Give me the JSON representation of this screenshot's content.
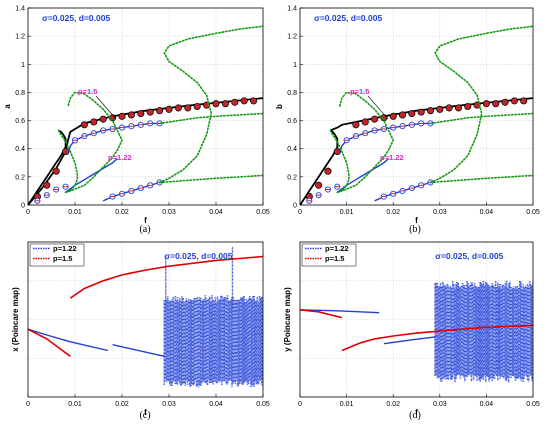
{
  "colors": {
    "black": "#000000",
    "blue": "#1f3fd6",
    "red": "#e00000",
    "green": "#119a11",
    "magenta": "#e01fc9",
    "marker_fill": "#c0252a",
    "grid": "#d0d0d0"
  },
  "chart_data": [
    {
      "type": "line",
      "panel": "a",
      "caption": "(a)",
      "xlabel": "f",
      "ylabel": "a",
      "param_text": "σ=0.025, d=0.005",
      "annotations": [
        "p=1.5",
        "p=1.22"
      ],
      "xlim": [
        0,
        0.05
      ],
      "ylim": [
        0,
        1.4
      ],
      "xticks": [
        "0",
        "0.01",
        "0.02",
        "0.03",
        "0.04",
        "0.05"
      ],
      "yticks": [
        "0",
        "0.2",
        "0.4",
        "0.6",
        "0.8",
        "1",
        "1.2",
        "1.4"
      ],
      "grid": true,
      "series": [
        {
          "style": "black-solid",
          "x": [
            0,
            0.003,
            0.006,
            0.008,
            0.0085,
            0.009,
            0.012,
            0.018,
            0.025,
            0.035,
            0.05
          ],
          "y": [
            0,
            0.12,
            0.26,
            0.38,
            0.46,
            0.52,
            0.58,
            0.63,
            0.67,
            0.71,
            0.76
          ]
        },
        {
          "style": "black-solid",
          "x": [
            0.0,
            0.001,
            0.002,
            0.003,
            0.004,
            0.005,
            0.006,
            0.007,
            0.0075,
            0.008,
            0.008,
            0.0075,
            0.007,
            0.0065
          ],
          "y": [
            0.0,
            0.05,
            0.1,
            0.15,
            0.2,
            0.25,
            0.3,
            0.35,
            0.38,
            0.41,
            0.47,
            0.5,
            0.52,
            0.53
          ]
        },
        {
          "style": "red-circles",
          "x": [
            0.002,
            0.004,
            0.006,
            0.008,
            0.012,
            0.014,
            0.016,
            0.018,
            0.02,
            0.022,
            0.024,
            0.026,
            0.028,
            0.03,
            0.032,
            0.034,
            0.036,
            0.038,
            0.04,
            0.042,
            0.044,
            0.046,
            0.048
          ],
          "y": [
            0.06,
            0.14,
            0.24,
            0.38,
            0.57,
            0.59,
            0.61,
            0.62,
            0.63,
            0.64,
            0.65,
            0.66,
            0.67,
            0.68,
            0.69,
            0.69,
            0.7,
            0.71,
            0.72,
            0.72,
            0.73,
            0.74,
            0.74
          ]
        },
        {
          "style": "blue-solid",
          "x": [
            0.0085,
            0.009,
            0.01,
            0.012,
            0.014,
            0.016,
            0.018,
            0.02,
            0.022,
            0.024,
            0.026,
            0.028
          ],
          "y": [
            0.36,
            0.42,
            0.46,
            0.49,
            0.51,
            0.53,
            0.54,
            0.55,
            0.56,
            0.57,
            0.58,
            0.58
          ]
        },
        {
          "style": "blue-open-circles",
          "x": [
            0.01,
            0.012,
            0.014,
            0.016,
            0.018,
            0.02,
            0.022,
            0.024,
            0.026,
            0.028
          ],
          "y": [
            0.46,
            0.49,
            0.51,
            0.53,
            0.54,
            0.55,
            0.56,
            0.57,
            0.58,
            0.58
          ]
        },
        {
          "style": "blue-solid",
          "x": [
            0.008,
            0.01,
            0.012,
            0.014,
            0.016,
            0.018,
            0.019
          ],
          "y": [
            0.09,
            0.14,
            0.18,
            0.22,
            0.26,
            0.3,
            0.33
          ]
        },
        {
          "style": "blue-solid",
          "x": [
            0.016,
            0.018,
            0.02,
            0.022,
            0.024,
            0.026,
            0.028
          ],
          "y": [
            0.03,
            0.06,
            0.08,
            0.1,
            0.12,
            0.14,
            0.16
          ]
        },
        {
          "style": "blue-open-circles",
          "x": [
            0.002,
            0.004,
            0.006,
            0.008,
            0.018,
            0.02,
            0.022,
            0.024,
            0.026,
            0.028
          ],
          "y": [
            0.03,
            0.07,
            0.11,
            0.13,
            0.06,
            0.08,
            0.1,
            0.12,
            0.14,
            0.16
          ]
        },
        {
          "style": "green-dotted",
          "x": [
            0.0065,
            0.007,
            0.008,
            0.009,
            0.01,
            0.0105,
            0.0105,
            0.01,
            0.009,
            0.008
          ],
          "y": [
            0.53,
            0.5,
            0.45,
            0.38,
            0.3,
            0.22,
            0.18,
            0.14,
            0.1,
            0.09
          ]
        },
        {
          "style": "green-dotted",
          "x": [
            0.008,
            0.009,
            0.012,
            0.014,
            0.016,
            0.018,
            0.019,
            0.02,
            0.018,
            0.016,
            0.014,
            0.012,
            0.01,
            0.009,
            0.0085
          ],
          "y": [
            0.09,
            0.1,
            0.14,
            0.2,
            0.27,
            0.34,
            0.39,
            0.46,
            0.6,
            0.68,
            0.74,
            0.79,
            0.8,
            0.76,
            0.7
          ]
        },
        {
          "style": "green-dotted",
          "x": [
            0.028,
            0.03,
            0.033,
            0.036,
            0.038,
            0.039,
            0.038,
            0.036,
            0.033,
            0.03,
            0.029,
            0.03,
            0.034,
            0.04,
            0.045,
            0.05
          ],
          "y": [
            0.16,
            0.19,
            0.25,
            0.35,
            0.5,
            0.65,
            0.78,
            0.87,
            0.95,
            1.02,
            1.08,
            1.13,
            1.18,
            1.22,
            1.25,
            1.27
          ]
        },
        {
          "style": "green-dotted",
          "x": [
            0.028,
            0.032,
            0.036,
            0.04,
            0.045,
            0.05
          ],
          "y": [
            0.58,
            0.6,
            0.62,
            0.63,
            0.64,
            0.65
          ]
        },
        {
          "style": "green-dotted",
          "x": [
            0.028,
            0.032,
            0.036,
            0.04,
            0.045,
            0.05
          ],
          "y": [
            0.16,
            0.17,
            0.18,
            0.19,
            0.2,
            0.21
          ]
        }
      ]
    },
    {
      "type": "line",
      "panel": "b",
      "caption": "(b)",
      "xlabel": "f",
      "ylabel": "b",
      "param_text": "σ=0.025, d=0.005",
      "annotations": [
        "p=1.5",
        "p=1.22"
      ],
      "xlim": [
        0,
        0.05
      ],
      "ylim": [
        0,
        1.4
      ],
      "xticks": [
        "0",
        "0.01",
        "0.02",
        "0.03",
        "0.04",
        "0.05"
      ],
      "yticks": [
        "0",
        "0.2",
        "0.4",
        "0.6",
        "0.8",
        "1",
        "1.2",
        "1.4"
      ],
      "grid": true,
      "series": [
        {
          "style": "black-solid",
          "x": [
            0.0065,
            0.008,
            0.009,
            0.012,
            0.018,
            0.025,
            0.035,
            0.05
          ],
          "y": [
            0.53,
            0.55,
            0.57,
            0.59,
            0.63,
            0.67,
            0.71,
            0.76
          ]
        },
        {
          "style": "black-solid",
          "x": [
            0.0,
            0.001,
            0.002,
            0.003,
            0.004,
            0.005,
            0.006,
            0.007,
            0.0075,
            0.008,
            0.008,
            0.0075,
            0.007,
            0.0065
          ],
          "y": [
            0.0,
            0.05,
            0.1,
            0.15,
            0.2,
            0.25,
            0.3,
            0.35,
            0.38,
            0.41,
            0.47,
            0.5,
            0.52,
            0.53
          ]
        },
        {
          "style": "red-circles",
          "x": [
            0.002,
            0.004,
            0.006,
            0.008,
            0.012,
            0.014,
            0.016,
            0.018,
            0.02,
            0.022,
            0.024,
            0.026,
            0.028,
            0.03,
            0.032,
            0.034,
            0.036,
            0.038,
            0.04,
            0.042,
            0.044,
            0.046,
            0.048
          ],
          "y": [
            0.06,
            0.14,
            0.24,
            0.38,
            0.57,
            0.59,
            0.61,
            0.62,
            0.63,
            0.64,
            0.65,
            0.66,
            0.67,
            0.68,
            0.69,
            0.69,
            0.7,
            0.71,
            0.72,
            0.72,
            0.73,
            0.74,
            0.74
          ]
        },
        {
          "style": "blue-solid",
          "x": [
            0.0085,
            0.009,
            0.01,
            0.012,
            0.014,
            0.016,
            0.018,
            0.02,
            0.022,
            0.024,
            0.026,
            0.028
          ],
          "y": [
            0.36,
            0.42,
            0.46,
            0.49,
            0.51,
            0.53,
            0.54,
            0.55,
            0.56,
            0.57,
            0.58,
            0.58
          ]
        },
        {
          "style": "blue-open-circles",
          "x": [
            0.01,
            0.012,
            0.014,
            0.016,
            0.018,
            0.02,
            0.022,
            0.024,
            0.026,
            0.028
          ],
          "y": [
            0.46,
            0.49,
            0.51,
            0.53,
            0.54,
            0.55,
            0.56,
            0.57,
            0.58,
            0.58
          ]
        },
        {
          "style": "blue-solid",
          "x": [
            0.008,
            0.01,
            0.012,
            0.014,
            0.016,
            0.018,
            0.019
          ],
          "y": [
            0.09,
            0.14,
            0.18,
            0.22,
            0.26,
            0.3,
            0.33
          ]
        },
        {
          "style": "blue-solid",
          "x": [
            0.016,
            0.018,
            0.02,
            0.022,
            0.024,
            0.026,
            0.028
          ],
          "y": [
            0.03,
            0.06,
            0.08,
            0.1,
            0.12,
            0.14,
            0.16
          ]
        },
        {
          "style": "blue-open-circles",
          "x": [
            0.002,
            0.004,
            0.006,
            0.008,
            0.018,
            0.02,
            0.022,
            0.024,
            0.026,
            0.028
          ],
          "y": [
            0.03,
            0.07,
            0.11,
            0.13,
            0.06,
            0.08,
            0.1,
            0.12,
            0.14,
            0.16
          ]
        },
        {
          "style": "green-dotted",
          "x": [
            0.0065,
            0.007,
            0.008,
            0.009,
            0.01,
            0.0105,
            0.0105,
            0.01,
            0.009,
            0.008
          ],
          "y": [
            0.53,
            0.5,
            0.45,
            0.38,
            0.3,
            0.22,
            0.18,
            0.14,
            0.1,
            0.09
          ]
        },
        {
          "style": "green-dotted",
          "x": [
            0.008,
            0.009,
            0.012,
            0.014,
            0.016,
            0.018,
            0.019,
            0.02,
            0.018,
            0.016,
            0.014,
            0.012,
            0.01,
            0.009,
            0.0085
          ],
          "y": [
            0.09,
            0.1,
            0.14,
            0.2,
            0.27,
            0.34,
            0.39,
            0.46,
            0.6,
            0.68,
            0.74,
            0.79,
            0.8,
            0.76,
            0.7
          ]
        },
        {
          "style": "green-dotted",
          "x": [
            0.028,
            0.03,
            0.033,
            0.036,
            0.038,
            0.039,
            0.038,
            0.036,
            0.033,
            0.03,
            0.029,
            0.03,
            0.034,
            0.04,
            0.045,
            0.05
          ],
          "y": [
            0.16,
            0.19,
            0.25,
            0.35,
            0.5,
            0.65,
            0.78,
            0.87,
            0.95,
            1.02,
            1.08,
            1.13,
            1.18,
            1.22,
            1.25,
            1.27
          ]
        },
        {
          "style": "green-dotted",
          "x": [
            0.028,
            0.032,
            0.036,
            0.04,
            0.045,
            0.05
          ],
          "y": [
            0.58,
            0.6,
            0.62,
            0.63,
            0.64,
            0.65
          ]
        },
        {
          "style": "green-dotted",
          "x": [
            0.028,
            0.032,
            0.036,
            0.04,
            0.045,
            0.05
          ],
          "y": [
            0.16,
            0.17,
            0.18,
            0.19,
            0.2,
            0.21
          ]
        }
      ]
    },
    {
      "type": "scatter",
      "panel": "c",
      "caption": "(c)",
      "xlabel": "f",
      "ylabel": "x (Poincare map)",
      "param_text": "σ=0.025, d=0.005",
      "legend": [
        {
          "name": "p=1.22",
          "color": "#1f3fd6"
        },
        {
          "name": "p=1.5",
          "color": "#e00000"
        }
      ],
      "legend_position": "top-left",
      "xlim": [
        0,
        0.05
      ],
      "ylim": [
        -0.7,
        0.9
      ],
      "xticks": [
        "0",
        "0.01",
        "0.02",
        "0.03",
        "0.04",
        "0.05"
      ],
      "yticks": [],
      "grid": true,
      "series": [
        {
          "name": "p=1.22",
          "style": "blue-line",
          "x": [
            0,
            0.004,
            0.009
          ],
          "y": [
            0.0,
            -0.06,
            -0.13
          ]
        },
        {
          "name": "p=1.22",
          "style": "blue-line",
          "x": [
            0.009,
            0.017
          ],
          "y": [
            -0.13,
            -0.22
          ]
        },
        {
          "name": "p=1.22",
          "style": "blue-line",
          "x": [
            0.018,
            0.029
          ],
          "y": [
            -0.16,
            -0.28
          ]
        },
        {
          "name": "p=1.22",
          "style": "blue-scatter-band",
          "x_range": [
            0.029,
            0.05
          ],
          "y_range": [
            -0.6,
            0.35
          ]
        },
        {
          "name": "p=1.22",
          "style": "blue-spike",
          "x": [
            0.0293,
            0.0435
          ],
          "y": [
            0.75,
            0.85
          ]
        },
        {
          "name": "p=1.5",
          "style": "red-line",
          "x": [
            0,
            0.004,
            0.009
          ],
          "y": [
            0.0,
            -0.1,
            -0.28
          ]
        },
        {
          "name": "p=1.5",
          "style": "red-line",
          "x": [
            0.009,
            0.012,
            0.016,
            0.02,
            0.025,
            0.03,
            0.035,
            0.04,
            0.045,
            0.05
          ],
          "y": [
            0.32,
            0.42,
            0.5,
            0.56,
            0.61,
            0.65,
            0.68,
            0.71,
            0.73,
            0.75
          ]
        }
      ]
    },
    {
      "type": "scatter",
      "panel": "d",
      "caption": "(d)",
      "xlabel": "f",
      "ylabel": "y (Poincare map)",
      "param_text": "σ=0.025, d=0.005",
      "legend": [
        {
          "name": "p=1.22",
          "color": "#1f3fd6"
        },
        {
          "name": "p=1.5",
          "color": "#e00000"
        }
      ],
      "legend_position": "top-left",
      "xlim": [
        0,
        0.05
      ],
      "ylim": [
        -0.9,
        0.7
      ],
      "xticks": [
        "0",
        "0.01",
        "0.02",
        "0.03",
        "0.04",
        "0.05"
      ],
      "yticks": [],
      "grid": true,
      "series": [
        {
          "name": "p=1.22",
          "style": "blue-line",
          "x": [
            0,
            0.008,
            0.017
          ],
          "y": [
            0.0,
            -0.01,
            -0.03
          ]
        },
        {
          "name": "p=1.22",
          "style": "blue-line",
          "x": [
            0.018,
            0.024,
            0.029
          ],
          "y": [
            -0.35,
            -0.31,
            -0.28
          ]
        },
        {
          "name": "p=1.22",
          "style": "blue-scatter-band",
          "x_range": [
            0.029,
            0.05
          ],
          "y_range": [
            -0.75,
            0.3
          ]
        },
        {
          "name": "p=1.5",
          "style": "red-line",
          "x": [
            0,
            0.004,
            0.009
          ],
          "y": [
            0.0,
            -0.02,
            -0.08
          ]
        },
        {
          "name": "p=1.5",
          "style": "red-line",
          "x": [
            0.009,
            0.011,
            0.013,
            0.016,
            0.02,
            0.025,
            0.03,
            0.035,
            0.04,
            0.045,
            0.05
          ],
          "y": [
            -0.42,
            -0.38,
            -0.34,
            -0.3,
            -0.27,
            -0.24,
            -0.22,
            -0.2,
            -0.18,
            -0.17,
            -0.16
          ]
        }
      ]
    }
  ]
}
